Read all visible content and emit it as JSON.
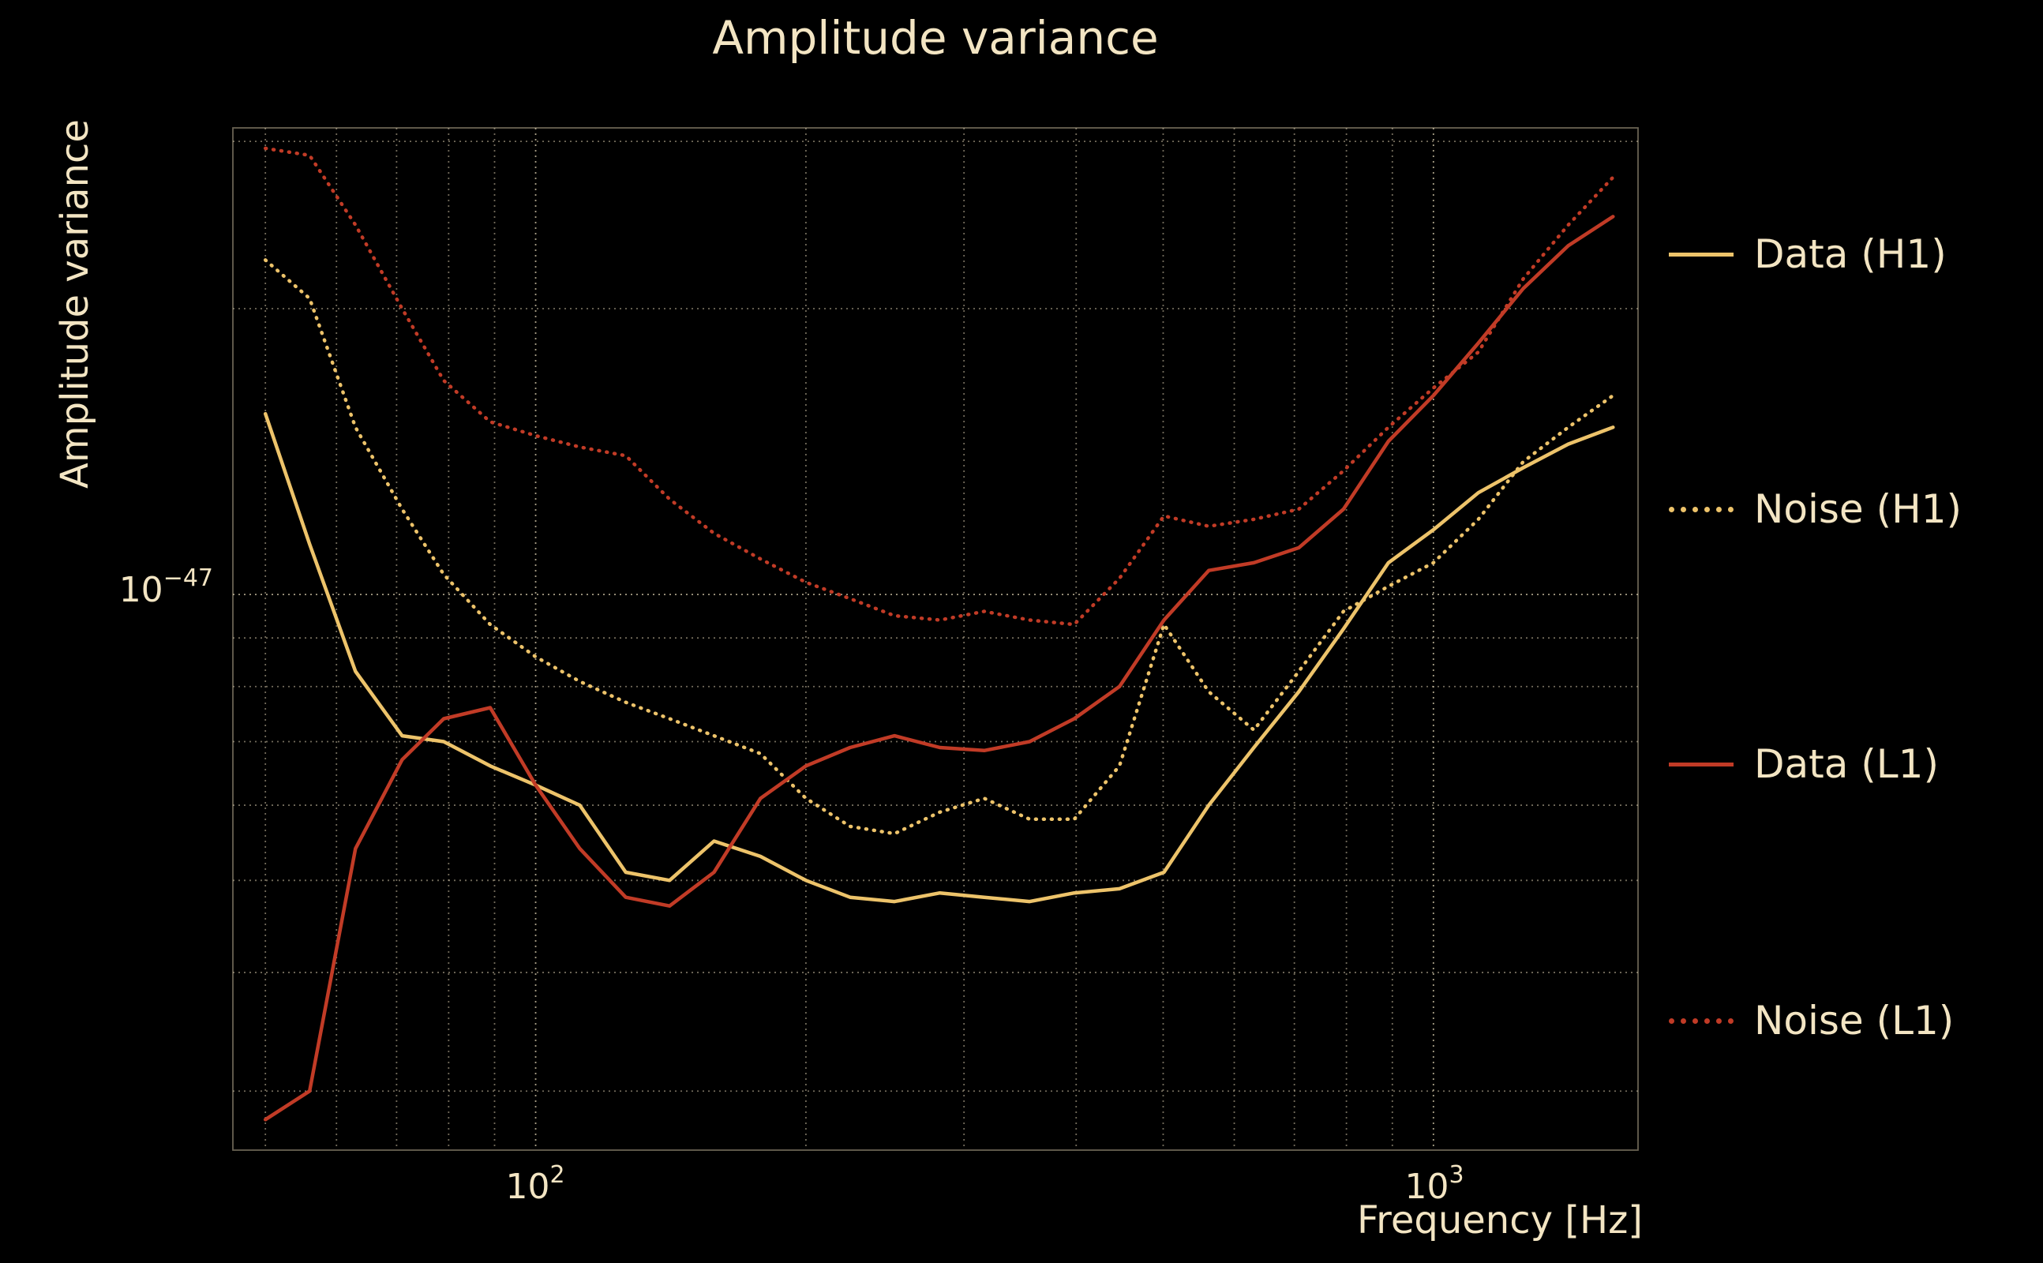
{
  "title": "Amplitude variance",
  "colors": {
    "background": "#000000",
    "text": "#f3e5c3",
    "grid": "#cfc3a6",
    "gold": "#edc36a",
    "red": "#c13b26"
  },
  "axes": {
    "ylabel": "Amplitude variance",
    "xlabel": "Frequency [Hz]",
    "x_ticks": [
      {
        "base": "10",
        "exp": "2",
        "value": 100
      },
      {
        "base": "10",
        "exp": "3",
        "value": 1000
      }
    ],
    "y_ticks": [
      {
        "base": "10",
        "exp": "−47",
        "value": 1e-47
      }
    ]
  },
  "legend": [
    {
      "label": "Data (H1)",
      "color": "#edc36a",
      "style": "solid"
    },
    {
      "label": "Noise (H1)",
      "color": "#edc36a",
      "style": "dotted"
    },
    {
      "label": "Data (L1)",
      "color": "#c13b26",
      "style": "solid"
    },
    {
      "label": "Noise (L1)",
      "color": "#c13b26",
      "style": "dotted"
    }
  ],
  "chart_data": {
    "type": "line",
    "title": "Amplitude variance",
    "xlabel": "Frequency [Hz]",
    "ylabel": "Amplitude variance",
    "x_scale": "log",
    "y_scale": "log",
    "xlim": [
      46,
      1690
    ],
    "ylim": [
      2.6e-48,
      3.1e-47
    ],
    "grid": true,
    "grid_style": "dotted",
    "legend_position": "right-outside",
    "x": [
      50,
      56,
      63,
      71,
      79,
      89,
      100,
      112,
      126,
      141,
      158,
      178,
      200,
      224,
      251,
      282,
      316,
      355,
      398,
      447,
      501,
      562,
      631,
      708,
      794,
      891,
      1000,
      1122,
      1259,
      1413,
      1585
    ],
    "series": [
      {
        "name": "Data (H1)",
        "color": "#edc36a",
        "line_style": "solid",
        "values": [
          1.55e-47,
          1.13e-47,
          8.3e-48,
          7.1e-48,
          7e-48,
          6.6e-48,
          6.3e-48,
          6e-48,
          5.1e-48,
          5e-48,
          5.5e-48,
          5.3e-48,
          5e-48,
          4.8e-48,
          4.75e-48,
          4.85e-48,
          4.8e-48,
          4.75e-48,
          4.85e-48,
          4.9e-48,
          5.1e-48,
          6e-48,
          6.9e-48,
          7.9e-48,
          9.2e-48,
          1.08e-47,
          1.17e-47,
          1.28e-47,
          1.36e-47,
          1.44e-47,
          1.5e-47
        ]
      },
      {
        "name": "Noise (H1)",
        "color": "#edc36a",
        "line_style": "dotted",
        "values": [
          2.25e-47,
          2.05e-47,
          1.5e-47,
          1.23e-47,
          1.05e-47,
          9.3e-48,
          8.6e-48,
          8.1e-48,
          7.7e-48,
          7.4e-48,
          7.1e-48,
          6.8e-48,
          6.1e-48,
          5.7e-48,
          5.6e-48,
          5.9e-48,
          6.1e-48,
          5.8e-48,
          5.8e-48,
          6.6e-48,
          9.3e-48,
          7.9e-48,
          7.2e-48,
          8.3e-48,
          9.6e-48,
          1.02e-47,
          1.08e-47,
          1.2e-47,
          1.38e-47,
          1.5e-47,
          1.62e-47
        ]
      },
      {
        "name": "Data (L1)",
        "color": "#c13b26",
        "line_style": "solid",
        "values": [
          2.8e-48,
          3e-48,
          5.4e-48,
          6.7e-48,
          7.4e-48,
          7.6e-48,
          6.3e-48,
          5.4e-48,
          4.8e-48,
          4.7e-48,
          5.1e-48,
          6.1e-48,
          6.6e-48,
          6.9e-48,
          7.1e-48,
          6.9e-48,
          6.85e-48,
          7e-48,
          7.4e-48,
          8e-48,
          9.4e-48,
          1.06e-47,
          1.08e-47,
          1.12e-47,
          1.23e-47,
          1.45e-47,
          1.62e-47,
          1.84e-47,
          2.1e-47,
          2.33e-47,
          2.5e-47
        ]
      },
      {
        "name": "Noise (L1)",
        "color": "#c13b26",
        "line_style": "dotted",
        "values": [
          2.95e-47,
          2.9e-47,
          2.45e-47,
          2e-47,
          1.68e-47,
          1.52e-47,
          1.47e-47,
          1.43e-47,
          1.4e-47,
          1.26e-47,
          1.16e-47,
          1.09e-47,
          1.03e-47,
          9.9e-48,
          9.5e-48,
          9.4e-48,
          9.6e-48,
          9.4e-48,
          9.3e-48,
          1.04e-47,
          1.21e-47,
          1.18e-47,
          1.2e-47,
          1.23e-47,
          1.35e-47,
          1.5e-47,
          1.65e-47,
          1.8e-47,
          2.15e-47,
          2.45e-47,
          2.75e-47
        ]
      }
    ]
  }
}
